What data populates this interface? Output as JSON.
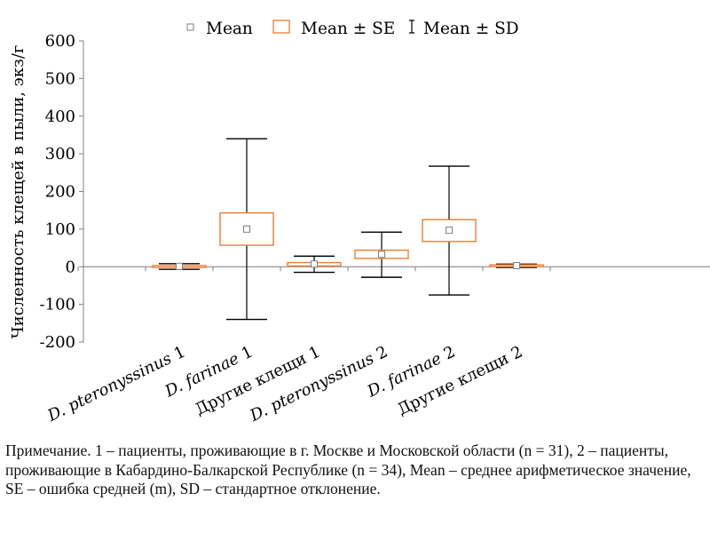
{
  "chart_data": {
    "type": "box",
    "categories": [
      "D. pteronyssinus 1",
      "D. farinae 1",
      "Другие клещи 1",
      "D. pteronyssinus 2",
      "D. farinae 2",
      "Другие клещи 2"
    ],
    "category_parts": [
      {
        "italic": "D. pteronyssinus",
        "plain": " 1"
      },
      {
        "italic": "D. farinae",
        "plain": " 1"
      },
      {
        "italic": "",
        "plain": "Другие клещи 1"
      },
      {
        "italic": "D. pteronyssinus",
        "plain": " 2"
      },
      {
        "italic": "D. farinae",
        "plain": " 2"
      },
      {
        "italic": "",
        "plain": "Другие клещи 2"
      }
    ],
    "series": [
      {
        "name": "Mean",
        "values": [
          1,
          100,
          7,
          33,
          97,
          3
        ]
      },
      {
        "name": "Mean ± SE",
        "low": [
          0,
          57,
          2,
          22,
          67,
          1
        ],
        "high": [
          3,
          143,
          11,
          44,
          125,
          5
        ]
      },
      {
        "name": "Mean ± SD",
        "low": [
          -7,
          -140,
          -15,
          -28,
          -75,
          -2
        ],
        "high": [
          8,
          340,
          28,
          92,
          267,
          7
        ]
      }
    ],
    "ylabel": "Численность клещей в пыли, экз/г",
    "ylim": [
      -200,
      600
    ],
    "yticks": [
      600,
      500,
      400,
      300,
      200,
      100,
      0,
      -100,
      -200
    ],
    "legend": [
      "Mean",
      "Mean ± SE",
      "Mean ± SD"
    ],
    "legend_position": "top",
    "grid": false
  },
  "colors": {
    "axis": "#7f7f7f",
    "box": "#ed7d31",
    "whisker": "#000000",
    "mean_marker": "#7f7f7f"
  },
  "note": "Примечание. 1 – пациенты, проживающие в г. Москве и Московской области (n = 31), 2 – пациенты, проживающие в Кабардино-Балкарской Республике (n = 34), Mean – среднее арифметическое значение, SE – ошибка средней (m), SD – стандартное отклонение."
}
